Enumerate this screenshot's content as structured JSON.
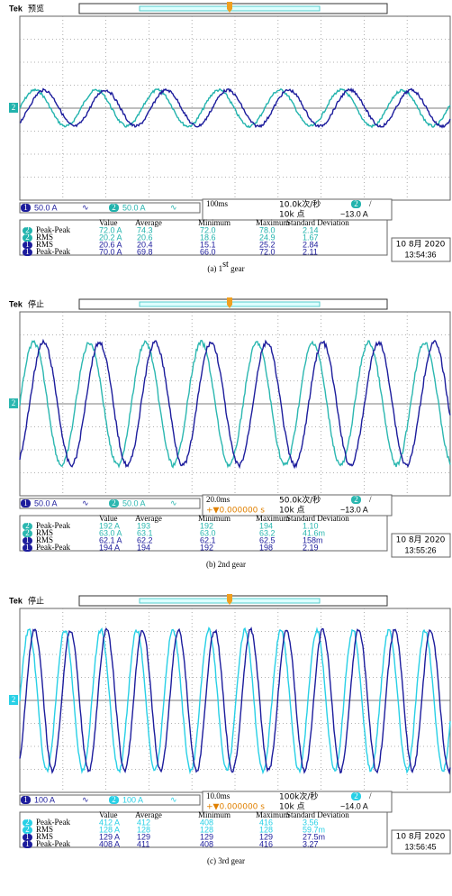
{
  "channel_labels": [
    "1",
    "2"
  ],
  "coupling": "∿",
  "trigger_slope": "/",
  "table_headers": [
    "Value",
    "Average",
    "Minimum",
    "Maximum",
    "Standard Deviation"
  ],
  "panels": [
    {
      "brand": "Tek",
      "status": "预览",
      "ch1_scale": "50.0 A",
      "ch2_scale": "50.0 A",
      "timebase": "100ms",
      "sample_rate": "10.0k次/秒",
      "points": "10k 点",
      "trigger_level": "−13.0 A",
      "trigger_pos": null,
      "rows": [
        {
          "ch": "2",
          "name": "Peak-Peak",
          "cells": [
            "72.0 A",
            "74.3",
            "72.0",
            "78.0",
            "2.14"
          ]
        },
        {
          "ch": "2",
          "name": "RMS",
          "cells": [
            "20.2 A",
            "20.6",
            "18.6",
            "24.9",
            "1.67"
          ]
        },
        {
          "ch": "1",
          "name": "RMS",
          "cells": [
            "20.6 A",
            "20.4",
            "15.1",
            "25.2",
            "2.84"
          ]
        },
        {
          "ch": "1",
          "name": "Peak-Peak",
          "cells": [
            "70.0 A",
            "69.8",
            "66.0",
            "72.0",
            "2.11"
          ]
        }
      ],
      "date": "10 8月 2020",
      "time": "13:54:36",
      "caption": {
        "main": "(a) 1",
        "sup": "st",
        "rest": " gear"
      }
    },
    {
      "brand": "Tek",
      "status": "停止",
      "ch1_scale": "50.0 A",
      "ch2_scale": "50.0 A",
      "timebase": "20.0ms",
      "sample_rate": "50.0k次/秒",
      "points": "10k 点",
      "trigger_level": "−13.0 A",
      "trigger_pos": "+▼0.000000 s",
      "rows": [
        {
          "ch": "2",
          "name": "Peak-Peak",
          "cells": [
            "192 A",
            "193",
            "192",
            "194",
            "1.10"
          ]
        },
        {
          "ch": "2",
          "name": "RMS",
          "cells": [
            "63.0 A",
            "63.1",
            "63.0",
            "63.2",
            "41.6m"
          ]
        },
        {
          "ch": "1",
          "name": "RMS",
          "cells": [
            "62.1 A",
            "62.2",
            "62.1",
            "62.5",
            "158m"
          ]
        },
        {
          "ch": "1",
          "name": "Peak-Peak",
          "cells": [
            "194 A",
            "194",
            "192",
            "198",
            "2.19"
          ]
        }
      ],
      "date": "10 8月 2020",
      "time": "13:55:26",
      "caption": {
        "main": "(b) 2nd gear"
      }
    },
    {
      "brand": "Tek",
      "status": "停止",
      "ch1_scale": "100 A",
      "ch2_scale": "100 A",
      "timebase": "10.0ms",
      "sample_rate": "100k次/秒",
      "points": "10k 点",
      "trigger_level": "−14.0 A",
      "trigger_pos": "+▼0.000000 s",
      "rows": [
        {
          "ch": "2",
          "name": "Peak-Peak",
          "cells": [
            "412 A",
            "412",
            "408",
            "416",
            "3.56"
          ]
        },
        {
          "ch": "2",
          "name": "RMS",
          "cells": [
            "128 A",
            "128",
            "128",
            "128",
            "59.7m"
          ]
        },
        {
          "ch": "1",
          "name": "RMS",
          "cells": [
            "129 A",
            "129",
            "129",
            "129",
            "27.5m"
          ]
        },
        {
          "ch": "1",
          "name": "Peak-Peak",
          "cells": [
            "408 A",
            "411",
            "408",
            "416",
            "3.27"
          ]
        }
      ],
      "date": "10 8月 2020",
      "time": "13:56:45",
      "caption": {
        "main": "(c) 3rd gear"
      }
    }
  ]
}
